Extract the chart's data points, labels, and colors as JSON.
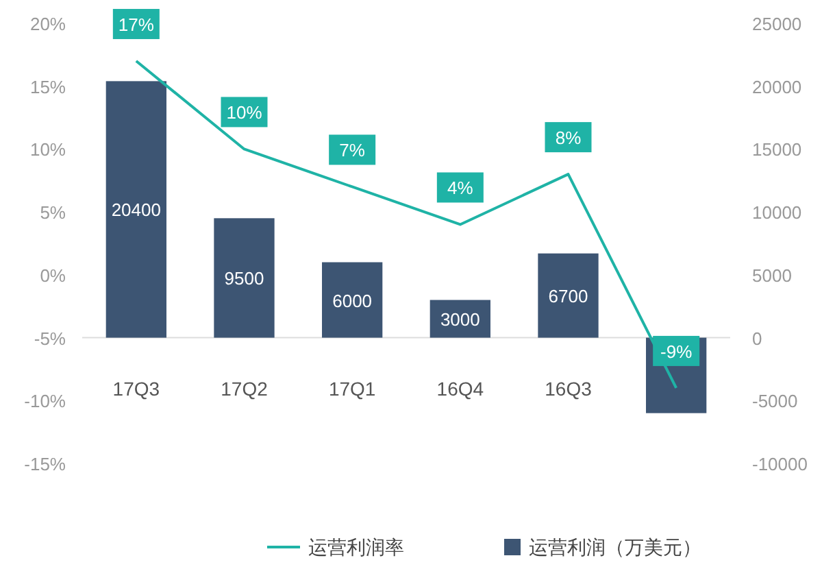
{
  "chart_data": {
    "type": "bar",
    "categories": [
      "17Q3",
      "17Q2",
      "17Q1",
      "16Q4",
      "16Q3",
      null
    ],
    "series": [
      {
        "name": "运营利润（万美元）",
        "axis": "y2",
        "color": "#3d5573",
        "values": [
          20400,
          9500,
          6000,
          3000,
          6700,
          -6000
        ],
        "value_labels": [
          "20400",
          "9500",
          "6000",
          "3000",
          "6700",
          null
        ]
      },
      {
        "name": "运营利润率",
        "type": "line",
        "axis": "y",
        "color": "#1fb3a6",
        "values": [
          17,
          10,
          7,
          4,
          8,
          -9
        ],
        "value_labels": [
          "17%",
          "10%",
          "7%",
          "4%",
          "8%",
          "-9%"
        ]
      }
    ],
    "ylim": [
      -15,
      20
    ],
    "yticks": [
      {
        "value": -15,
        "label": "-15%"
      },
      {
        "value": -10,
        "label": "-10%"
      },
      {
        "value": -5,
        "label": "-5%"
      },
      {
        "value": 0,
        "label": "0%"
      },
      {
        "value": 5,
        "label": "5%"
      },
      {
        "value": 10,
        "label": "10%"
      },
      {
        "value": 15,
        "label": "15%"
      },
      {
        "value": 20,
        "label": "20%"
      }
    ],
    "y2lim": [
      -10000,
      25000
    ],
    "y2ticks": [
      -10000,
      -5000,
      0,
      5000,
      10000,
      15000,
      20000,
      25000
    ],
    "legend": "bottom",
    "grid": false
  }
}
